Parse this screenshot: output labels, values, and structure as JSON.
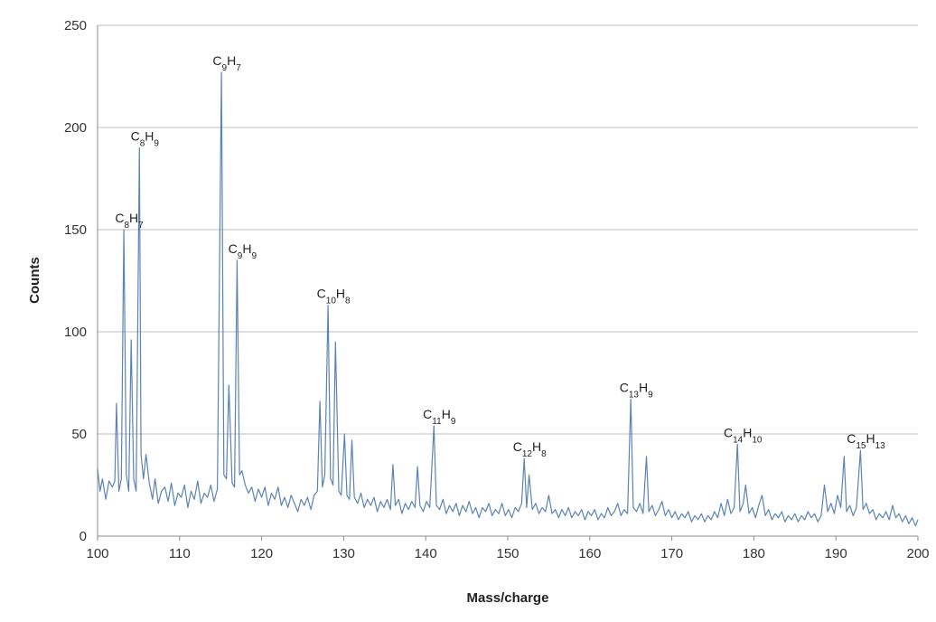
{
  "chart_data": {
    "type": "line",
    "title": "",
    "xlabel": "Mass/charge",
    "ylabel": "Counts",
    "xlim": [
      100,
      200
    ],
    "ylim": [
      0,
      250
    ],
    "x_ticks": [
      100,
      110,
      120,
      130,
      140,
      150,
      160,
      170,
      180,
      190,
      200
    ],
    "y_ticks": [
      0,
      50,
      100,
      150,
      200,
      250
    ],
    "grid": "horizontal",
    "legend": "none",
    "line_color": "#5b83b5",
    "grid_color": "#bfbfbf",
    "series": [
      {
        "values": [
          [
            100,
            33
          ],
          [
            100.3,
            22
          ],
          [
            100.6,
            28
          ],
          [
            101,
            18
          ],
          [
            101.4,
            27
          ],
          [
            101.8,
            24
          ],
          [
            102.1,
            27
          ],
          [
            102.3,
            65
          ],
          [
            102.6,
            22
          ],
          [
            102.9,
            28
          ],
          [
            103.2,
            150
          ],
          [
            103.5,
            30
          ],
          [
            103.8,
            22
          ],
          [
            104.1,
            96
          ],
          [
            104.4,
            28
          ],
          [
            104.7,
            22
          ],
          [
            105.1,
            190
          ],
          [
            105.3,
            40
          ],
          [
            105.6,
            28
          ],
          [
            105.9,
            40
          ],
          [
            106.3,
            26
          ],
          [
            106.7,
            18
          ],
          [
            107,
            28
          ],
          [
            107.4,
            16
          ],
          [
            107.8,
            22
          ],
          [
            108.2,
            24
          ],
          [
            108.6,
            17
          ],
          [
            109,
            26
          ],
          [
            109.4,
            15
          ],
          [
            109.8,
            21
          ],
          [
            110.2,
            19
          ],
          [
            110.6,
            25
          ],
          [
            111,
            14
          ],
          [
            111.4,
            22
          ],
          [
            111.8,
            18
          ],
          [
            112.2,
            27
          ],
          [
            112.6,
            16
          ],
          [
            113,
            21
          ],
          [
            113.4,
            19
          ],
          [
            113.8,
            25
          ],
          [
            114.2,
            17
          ],
          [
            114.6,
            23
          ],
          [
            115.1,
            227
          ],
          [
            115.4,
            30
          ],
          [
            115.7,
            28
          ],
          [
            116,
            74
          ],
          [
            116.4,
            26
          ],
          [
            116.7,
            24
          ],
          [
            117,
            135
          ],
          [
            117.3,
            30
          ],
          [
            117.6,
            32
          ],
          [
            118,
            25
          ],
          [
            118.4,
            21
          ],
          [
            118.8,
            24
          ],
          [
            119.2,
            17
          ],
          [
            119.6,
            23
          ],
          [
            120,
            19
          ],
          [
            120.4,
            24
          ],
          [
            120.8,
            15
          ],
          [
            121.2,
            21
          ],
          [
            121.6,
            18
          ],
          [
            122,
            24
          ],
          [
            122.4,
            15
          ],
          [
            122.8,
            19
          ],
          [
            123.2,
            14
          ],
          [
            123.6,
            20
          ],
          [
            124,
            16
          ],
          [
            124.4,
            12
          ],
          [
            124.8,
            18
          ],
          [
            125.2,
            15
          ],
          [
            125.6,
            19
          ],
          [
            126,
            13
          ],
          [
            126.4,
            20
          ],
          [
            126.8,
            22
          ],
          [
            127.1,
            66
          ],
          [
            127.4,
            24
          ],
          [
            127.7,
            30
          ],
          [
            128.1,
            113
          ],
          [
            128.4,
            28
          ],
          [
            128.7,
            25
          ],
          [
            129,
            95
          ],
          [
            129.4,
            22
          ],
          [
            129.7,
            20
          ],
          [
            130.1,
            50
          ],
          [
            130.4,
            20
          ],
          [
            130.7,
            18
          ],
          [
            131,
            47
          ],
          [
            131.3,
            19
          ],
          [
            131.7,
            16
          ],
          [
            132.1,
            21
          ],
          [
            132.5,
            14
          ],
          [
            132.9,
            18
          ],
          [
            133.3,
            15
          ],
          [
            133.7,
            19
          ],
          [
            134.1,
            12
          ],
          [
            134.5,
            17
          ],
          [
            134.9,
            14
          ],
          [
            135.3,
            18
          ],
          [
            135.7,
            13
          ],
          [
            136,
            35
          ],
          [
            136.3,
            15
          ],
          [
            136.7,
            18
          ],
          [
            137.1,
            11
          ],
          [
            137.5,
            16
          ],
          [
            137.9,
            13
          ],
          [
            138.3,
            17
          ],
          [
            138.7,
            14
          ],
          [
            139,
            34
          ],
          [
            139.3,
            15
          ],
          [
            139.7,
            12
          ],
          [
            140.1,
            17
          ],
          [
            140.5,
            14
          ],
          [
            141,
            54
          ],
          [
            141.3,
            15
          ],
          [
            141.7,
            13
          ],
          [
            142.1,
            18
          ],
          [
            142.5,
            11
          ],
          [
            142.9,
            15
          ],
          [
            143.3,
            12
          ],
          [
            143.7,
            16
          ],
          [
            144.1,
            10
          ],
          [
            144.5,
            15
          ],
          [
            144.9,
            12
          ],
          [
            145.3,
            17
          ],
          [
            145.7,
            11
          ],
          [
            146.1,
            14
          ],
          [
            146.5,
            9
          ],
          [
            146.9,
            14
          ],
          [
            147.3,
            12
          ],
          [
            147.7,
            16
          ],
          [
            148.1,
            10
          ],
          [
            148.5,
            13
          ],
          [
            148.9,
            11
          ],
          [
            149.3,
            16
          ],
          [
            149.7,
            10
          ],
          [
            150.1,
            13
          ],
          [
            150.5,
            9
          ],
          [
            150.9,
            14
          ],
          [
            151.3,
            12
          ],
          [
            151.7,
            16
          ],
          [
            152,
            38
          ],
          [
            152.3,
            14
          ],
          [
            152.6,
            30
          ],
          [
            153,
            13
          ],
          [
            153.4,
            16
          ],
          [
            153.8,
            11
          ],
          [
            154.2,
            14
          ],
          [
            154.6,
            12
          ],
          [
            155,
            20
          ],
          [
            155.4,
            11
          ],
          [
            155.8,
            13
          ],
          [
            156.2,
            9
          ],
          [
            156.6,
            13
          ],
          [
            157,
            10
          ],
          [
            157.4,
            14
          ],
          [
            157.8,
            9
          ],
          [
            158.2,
            12
          ],
          [
            158.6,
            10
          ],
          [
            159,
            13
          ],
          [
            159.4,
            8
          ],
          [
            159.8,
            12
          ],
          [
            160.2,
            10
          ],
          [
            160.6,
            13
          ],
          [
            161,
            8
          ],
          [
            161.4,
            11
          ],
          [
            161.8,
            9
          ],
          [
            162.2,
            14
          ],
          [
            162.6,
            10
          ],
          [
            163,
            12
          ],
          [
            163.4,
            16
          ],
          [
            163.8,
            10
          ],
          [
            164.2,
            13
          ],
          [
            164.6,
            11
          ],
          [
            165,
            67
          ],
          [
            165.3,
            14
          ],
          [
            165.7,
            12
          ],
          [
            166.1,
            16
          ],
          [
            166.5,
            11
          ],
          [
            166.9,
            39
          ],
          [
            167.2,
            12
          ],
          [
            167.6,
            15
          ],
          [
            168,
            10
          ],
          [
            168.4,
            13
          ],
          [
            168.8,
            17
          ],
          [
            169.2,
            10
          ],
          [
            169.6,
            13
          ],
          [
            170,
            9
          ],
          [
            170.4,
            12
          ],
          [
            170.8,
            8
          ],
          [
            171.2,
            11
          ],
          [
            171.6,
            9
          ],
          [
            172,
            12
          ],
          [
            172.4,
            7
          ],
          [
            172.8,
            10
          ],
          [
            173.2,
            8
          ],
          [
            173.6,
            11
          ],
          [
            174,
            7
          ],
          [
            174.4,
            10
          ],
          [
            174.8,
            8
          ],
          [
            175.2,
            12
          ],
          [
            175.6,
            9
          ],
          [
            176,
            16
          ],
          [
            176.4,
            10
          ],
          [
            176.8,
            18
          ],
          [
            177.2,
            11
          ],
          [
            177.6,
            14
          ],
          [
            178,
            45
          ],
          [
            178.3,
            12
          ],
          [
            178.7,
            16
          ],
          [
            179,
            25
          ],
          [
            179.4,
            11
          ],
          [
            179.8,
            14
          ],
          [
            180.2,
            9
          ],
          [
            180.6,
            15
          ],
          [
            181,
            20
          ],
          [
            181.4,
            10
          ],
          [
            181.8,
            13
          ],
          [
            182.2,
            8
          ],
          [
            182.6,
            11
          ],
          [
            183,
            9
          ],
          [
            183.4,
            12
          ],
          [
            183.8,
            7
          ],
          [
            184.2,
            10
          ],
          [
            184.6,
            8
          ],
          [
            185,
            11
          ],
          [
            185.4,
            7
          ],
          [
            185.8,
            10
          ],
          [
            186.2,
            8
          ],
          [
            186.6,
            12
          ],
          [
            187,
            9
          ],
          [
            187.4,
            11
          ],
          [
            187.8,
            7
          ],
          [
            188.2,
            10
          ],
          [
            188.6,
            25
          ],
          [
            189,
            12
          ],
          [
            189.4,
            16
          ],
          [
            189.8,
            11
          ],
          [
            190.2,
            20
          ],
          [
            190.6,
            14
          ],
          [
            191,
            39
          ],
          [
            191.3,
            12
          ],
          [
            191.7,
            15
          ],
          [
            192.1,
            10
          ],
          [
            192.5,
            14
          ],
          [
            193,
            42
          ],
          [
            193.3,
            13
          ],
          [
            193.7,
            16
          ],
          [
            194.1,
            11
          ],
          [
            194.5,
            13
          ],
          [
            194.9,
            8
          ],
          [
            195.3,
            11
          ],
          [
            195.7,
            9
          ],
          [
            196.1,
            12
          ],
          [
            196.5,
            8
          ],
          [
            196.9,
            15
          ],
          [
            197.3,
            9
          ],
          [
            197.7,
            11
          ],
          [
            198.1,
            7
          ],
          [
            198.5,
            10
          ],
          [
            198.9,
            6
          ],
          [
            199.3,
            9
          ],
          [
            199.7,
            5
          ],
          [
            200,
            8
          ]
        ]
      }
    ],
    "annotations": [
      {
        "base": "C",
        "c": "8",
        "h": "7",
        "x": 103.2,
        "y": 150
      },
      {
        "base": "C",
        "c": "8",
        "h": "9",
        "x": 105.1,
        "y": 190
      },
      {
        "base": "C",
        "c": "9",
        "h": "7",
        "x": 115.1,
        "y": 227
      },
      {
        "base": "C",
        "c": "9",
        "h": "9",
        "x": 117,
        "y": 135
      },
      {
        "base": "C",
        "c": "10",
        "h": "8",
        "x": 128.1,
        "y": 113
      },
      {
        "base": "C",
        "c": "11",
        "h": "9",
        "x": 141,
        "y": 54
      },
      {
        "base": "C",
        "c": "12",
        "h": "8",
        "x": 152,
        "y": 38
      },
      {
        "base": "C",
        "c": "13",
        "h": "9",
        "x": 165,
        "y": 67
      },
      {
        "base": "C",
        "c": "14",
        "h": "10",
        "x": 178,
        "y": 45
      },
      {
        "base": "C",
        "c": "15",
        "h": "13",
        "x": 193,
        "y": 42
      }
    ]
  }
}
